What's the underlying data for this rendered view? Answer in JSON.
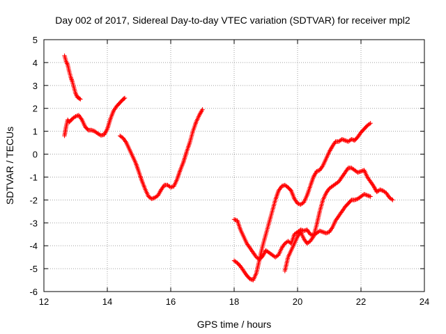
{
  "chart_data": {
    "type": "scatter",
    "title": "Day 002 of 2017, Sidereal Day-to-day VTEC variation (SDTVAR) for receiver mpl2",
    "xlabel": "GPS time / hours",
    "ylabel": "SDTVAR / TECUs",
    "xlim": [
      12,
      24
    ],
    "ylim": [
      -6,
      5
    ],
    "xticks": [
      12,
      14,
      16,
      18,
      20,
      22,
      24
    ],
    "yticks": [
      -6,
      -5,
      -4,
      -3,
      -2,
      -1,
      0,
      1,
      2,
      3,
      4,
      5
    ],
    "grid": true,
    "marker": "+",
    "color": "#ff0000",
    "series": [
      {
        "x": [
          12.65,
          12.7,
          12.75,
          12.8,
          12.85,
          12.9,
          12.95,
          13.0,
          13.05,
          13.1,
          13.15
        ],
        "y": [
          4.3,
          4.05,
          3.9,
          3.6,
          3.35,
          3.15,
          2.9,
          2.65,
          2.5,
          2.45,
          2.4
        ]
      },
      {
        "x": [
          12.65,
          12.7,
          12.75,
          12.8,
          12.9,
          13.0,
          13.1,
          13.2,
          13.3,
          13.4,
          13.5,
          13.6,
          13.7,
          13.8,
          13.9,
          14.0,
          14.1,
          14.2,
          14.3,
          14.4,
          14.5,
          14.55
        ],
        "y": [
          0.8,
          1.2,
          1.5,
          1.4,
          1.55,
          1.65,
          1.7,
          1.5,
          1.2,
          1.05,
          1.05,
          1.0,
          0.9,
          0.82,
          0.85,
          1.1,
          1.55,
          1.9,
          2.1,
          2.25,
          2.4,
          2.45
        ]
      },
      {
        "x": [
          14.4,
          14.5,
          14.6,
          14.7,
          14.8,
          14.9,
          15.0,
          15.1,
          15.2,
          15.3,
          15.4,
          15.5,
          15.6,
          15.7,
          15.8,
          15.9,
          16.0,
          16.1,
          16.2,
          16.3,
          16.4,
          16.5,
          16.6,
          16.7,
          16.8,
          16.9,
          17.0
        ],
        "y": [
          0.8,
          0.7,
          0.5,
          0.2,
          -0.1,
          -0.4,
          -0.8,
          -1.2,
          -1.55,
          -1.85,
          -1.95,
          -1.9,
          -1.8,
          -1.55,
          -1.35,
          -1.35,
          -1.45,
          -1.4,
          -1.1,
          -0.7,
          -0.35,
          0.1,
          0.5,
          1.0,
          1.4,
          1.7,
          1.95
        ]
      },
      {
        "x": [
          18.0,
          18.1,
          18.2,
          18.3,
          18.4,
          18.5,
          18.6,
          18.7,
          18.8,
          18.9,
          19.0,
          19.1,
          19.2,
          19.3,
          19.4,
          19.5,
          19.6,
          19.7,
          19.8,
          19.9,
          20.0,
          20.1,
          20.2,
          20.3,
          20.4,
          20.5,
          20.6,
          20.7,
          20.8,
          20.9,
          21.0,
          21.1,
          21.2,
          21.3,
          21.4,
          21.5,
          21.6,
          21.7,
          21.8,
          21.9,
          22.0,
          22.1,
          22.2,
          22.3
        ],
        "y": [
          -2.85,
          -2.9,
          -3.3,
          -3.6,
          -3.9,
          -4.1,
          -4.3,
          -4.5,
          -4.6,
          -4.45,
          -4.2,
          -4.3,
          -4.4,
          -4.5,
          -4.4,
          -4.1,
          -3.9,
          -3.8,
          -3.9,
          -3.5,
          -3.4,
          -3.3,
          -3.35,
          -3.3,
          -3.5,
          -3.55,
          -3.45,
          -3.35,
          -3.4,
          -3.45,
          -3.4,
          -3.2,
          -2.9,
          -2.7,
          -2.5,
          -2.3,
          -2.15,
          -2.0,
          -2.0,
          -1.95,
          -1.85,
          -1.75,
          -1.8,
          -1.85
        ]
      },
      {
        "x": [
          18.0,
          18.1,
          18.2,
          18.3,
          18.4,
          18.5,
          18.6,
          18.7,
          18.8,
          18.9,
          19.0,
          19.1,
          19.2,
          19.3,
          19.4,
          19.5,
          19.6,
          19.7,
          19.8,
          19.9,
          20.0,
          20.1,
          20.2,
          20.3,
          20.4,
          20.5,
          20.6,
          20.7,
          20.8,
          20.9,
          21.0,
          21.1,
          21.2,
          21.3,
          21.4,
          21.5,
          21.6,
          21.7,
          21.8,
          21.9,
          22.0,
          22.1,
          22.2,
          22.3
        ],
        "y": [
          -4.65,
          -4.75,
          -4.9,
          -5.1,
          -5.3,
          -5.45,
          -5.5,
          -5.2,
          -4.6,
          -4.0,
          -3.5,
          -3.0,
          -2.5,
          -2.0,
          -1.6,
          -1.4,
          -1.35,
          -1.45,
          -1.6,
          -1.95,
          -2.15,
          -2.2,
          -2.1,
          -1.8,
          -1.4,
          -1.0,
          -0.75,
          -0.7,
          -0.5,
          -0.2,
          0.1,
          0.35,
          0.55,
          0.55,
          0.65,
          0.6,
          0.55,
          0.65,
          0.6,
          0.75,
          0.95,
          1.1,
          1.25,
          1.35
        ]
      },
      {
        "x": [
          19.6,
          19.7,
          19.8,
          19.9,
          20.0,
          20.1,
          20.2,
          20.3,
          20.4,
          20.5,
          20.6,
          20.7,
          20.8,
          20.9,
          21.0,
          21.1,
          21.2,
          21.3,
          21.4,
          21.5,
          21.6,
          21.7,
          21.8,
          21.9,
          22.0,
          22.1,
          22.2,
          22.3,
          22.4,
          22.5,
          22.6,
          22.7,
          22.8,
          22.9,
          23.0
        ],
        "y": [
          -5.1,
          -4.5,
          -4.2,
          -3.9,
          -3.6,
          -3.4,
          -3.7,
          -3.9,
          -3.8,
          -3.6,
          -3.1,
          -2.5,
          -2.0,
          -1.7,
          -1.5,
          -1.4,
          -1.3,
          -1.2,
          -1.0,
          -0.8,
          -0.6,
          -0.6,
          -0.7,
          -0.8,
          -0.75,
          -0.7,
          -1.0,
          -1.2,
          -1.4,
          -1.65,
          -1.55,
          -1.6,
          -1.7,
          -1.9,
          -2.0
        ]
      }
    ]
  }
}
